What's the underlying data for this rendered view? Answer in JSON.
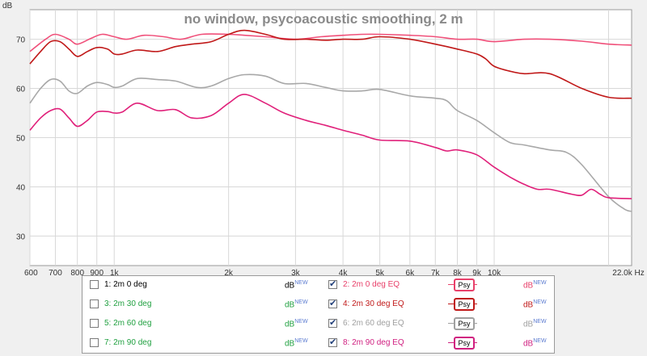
{
  "chart_data": {
    "type": "line",
    "title": "no window, psycoacoustic smoothing, 2 m",
    "ylabel": "dB",
    "xunit": "Hz",
    "xscale": "log",
    "xlim": [
      600,
      23000
    ],
    "ylim": [
      24,
      76
    ],
    "grid": true,
    "legend": "below",
    "xticks": [
      {
        "v": 600,
        "label": "600"
      },
      {
        "v": 700,
        "label": "700"
      },
      {
        "v": 800,
        "label": "800"
      },
      {
        "v": 900,
        "label": "900"
      },
      {
        "v": 1000,
        "label": "1k"
      },
      {
        "v": 2000,
        "label": "2k"
      },
      {
        "v": 3000,
        "label": "3k"
      },
      {
        "v": 4000,
        "label": "4k"
      },
      {
        "v": 5000,
        "label": "5k"
      },
      {
        "v": 6000,
        "label": "6k"
      },
      {
        "v": 7000,
        "label": "7k"
      },
      {
        "v": 8000,
        "label": "8k"
      },
      {
        "v": 9000,
        "label": "9k"
      },
      {
        "v": 10000,
        "label": "10k"
      },
      {
        "v": 22000,
        "label": "22,0k Hz"
      }
    ],
    "xgrid": [
      600,
      700,
      800,
      900,
      1000,
      2000,
      3000,
      4000,
      5000,
      6000,
      7000,
      8000,
      9000,
      10000,
      20000
    ],
    "yticks": [
      {
        "v": 30,
        "label": "30"
      },
      {
        "v": 40,
        "label": "40"
      },
      {
        "v": 50,
        "label": "50"
      },
      {
        "v": 60,
        "label": "60"
      },
      {
        "v": 70,
        "label": "70"
      }
    ],
    "series": [
      {
        "name": "2: 2m 0 deg EQ",
        "color": "#f0507a",
        "points": [
          [
            600,
            67.5
          ],
          [
            660,
            70
          ],
          [
            700,
            71
          ],
          [
            760,
            70
          ],
          [
            800,
            69
          ],
          [
            870,
            70.2
          ],
          [
            930,
            71
          ],
          [
            1000,
            70.5
          ],
          [
            1080,
            70
          ],
          [
            1200,
            70.8
          ],
          [
            1350,
            70.5
          ],
          [
            1500,
            70
          ],
          [
            1700,
            71
          ],
          [
            2000,
            71
          ],
          [
            2200,
            70.8
          ],
          [
            2500,
            70.5
          ],
          [
            3000,
            70
          ],
          [
            3500,
            70.5
          ],
          [
            4000,
            70.8
          ],
          [
            4500,
            71
          ],
          [
            5000,
            71
          ],
          [
            6000,
            70.8
          ],
          [
            7000,
            70.5
          ],
          [
            8000,
            70
          ],
          [
            9000,
            70
          ],
          [
            10000,
            69.5
          ],
          [
            12000,
            70
          ],
          [
            14000,
            70
          ],
          [
            17000,
            69.6
          ],
          [
            20000,
            69
          ],
          [
            23000,
            68.8
          ]
        ]
      },
      {
        "name": "4: 2m 30 deg EQ",
        "color": "#c01818",
        "points": [
          [
            600,
            65
          ],
          [
            640,
            67.5
          ],
          [
            680,
            69.5
          ],
          [
            720,
            69.5
          ],
          [
            760,
            68
          ],
          [
            800,
            66.5
          ],
          [
            850,
            67.5
          ],
          [
            900,
            68.3
          ],
          [
            960,
            68
          ],
          [
            1000,
            67
          ],
          [
            1050,
            67
          ],
          [
            1150,
            67.8
          ],
          [
            1300,
            67.5
          ],
          [
            1450,
            68.5
          ],
          [
            1600,
            69
          ],
          [
            1800,
            69.5
          ],
          [
            2000,
            71
          ],
          [
            2200,
            71.8
          ],
          [
            2500,
            71
          ],
          [
            2800,
            70
          ],
          [
            3200,
            70
          ],
          [
            3600,
            69.8
          ],
          [
            4000,
            70
          ],
          [
            4500,
            70
          ],
          [
            5000,
            70.5
          ],
          [
            6000,
            70
          ],
          [
            7000,
            69
          ],
          [
            8000,
            68
          ],
          [
            9000,
            67
          ],
          [
            9500,
            66
          ],
          [
            10000,
            64.5
          ],
          [
            11000,
            63.5
          ],
          [
            12000,
            63
          ],
          [
            14000,
            63
          ],
          [
            17000,
            60
          ],
          [
            20000,
            58.2
          ],
          [
            23000,
            58
          ]
        ]
      },
      {
        "name": "6: 2m 60 deg EQ",
        "color": "#a8a8a8",
        "points": [
          [
            600,
            57
          ],
          [
            640,
            60
          ],
          [
            680,
            61.8
          ],
          [
            720,
            61.5
          ],
          [
            760,
            59.5
          ],
          [
            800,
            59
          ],
          [
            850,
            60.5
          ],
          [
            900,
            61.2
          ],
          [
            960,
            60.8
          ],
          [
            1000,
            60.2
          ],
          [
            1050,
            60.5
          ],
          [
            1150,
            62
          ],
          [
            1300,
            61.8
          ],
          [
            1450,
            61.5
          ],
          [
            1650,
            60.2
          ],
          [
            1800,
            60.5
          ],
          [
            2000,
            62
          ],
          [
            2200,
            62.8
          ],
          [
            2500,
            62.5
          ],
          [
            2800,
            61
          ],
          [
            3200,
            61
          ],
          [
            3600,
            60.2
          ],
          [
            4000,
            59.5
          ],
          [
            4500,
            59.5
          ],
          [
            5000,
            59.8
          ],
          [
            6000,
            58.5
          ],
          [
            7000,
            58
          ],
          [
            7500,
            57.5
          ],
          [
            8000,
            55.5
          ],
          [
            9000,
            53.5
          ],
          [
            10000,
            51
          ],
          [
            11000,
            49
          ],
          [
            12000,
            48.5
          ],
          [
            14000,
            47.5
          ],
          [
            15500,
            47
          ],
          [
            17000,
            44.5
          ],
          [
            20000,
            38
          ],
          [
            22000,
            35.5
          ],
          [
            23000,
            35
          ]
        ]
      },
      {
        "name": "8: 2m 90 deg EQ",
        "color": "#e0207a",
        "points": [
          [
            600,
            51.5
          ],
          [
            640,
            54
          ],
          [
            680,
            55.5
          ],
          [
            720,
            55.8
          ],
          [
            760,
            54
          ],
          [
            800,
            52.3
          ],
          [
            850,
            53.5
          ],
          [
            900,
            55.2
          ],
          [
            960,
            55.3
          ],
          [
            1000,
            55
          ],
          [
            1050,
            55.2
          ],
          [
            1150,
            57
          ],
          [
            1300,
            55.5
          ],
          [
            1450,
            55.7
          ],
          [
            1600,
            54
          ],
          [
            1800,
            54.5
          ],
          [
            2000,
            57
          ],
          [
            2200,
            58.8
          ],
          [
            2500,
            57
          ],
          [
            2800,
            55
          ],
          [
            3200,
            53.5
          ],
          [
            3600,
            52.5
          ],
          [
            4000,
            51.5
          ],
          [
            4500,
            50.5
          ],
          [
            5000,
            49.5
          ],
          [
            6000,
            49.3
          ],
          [
            7000,
            48
          ],
          [
            7500,
            47.3
          ],
          [
            8000,
            47.5
          ],
          [
            9000,
            46.5
          ],
          [
            10000,
            44
          ],
          [
            11000,
            42
          ],
          [
            12000,
            40.5
          ],
          [
            13000,
            39.5
          ],
          [
            14000,
            39.5
          ],
          [
            16000,
            38.5
          ],
          [
            17000,
            38.3
          ],
          [
            18000,
            39.5
          ],
          [
            19000,
            38.5
          ],
          [
            20000,
            37.8
          ],
          [
            23000,
            37.6
          ]
        ]
      }
    ]
  },
  "legend": {
    "rows": [
      {
        "left": {
          "label": "1: 2m 0 deg",
          "checked": false,
          "color": "#000000",
          "db": "dB",
          "new": "NEW",
          "dbcolor": "#000000"
        },
        "right": {
          "label": "2: 2m 0 deg EQ",
          "checked": true,
          "color": "#e8406a",
          "db": "dB",
          "new": "NEW",
          "dbcolor": "#e8406a",
          "psy": "Psy"
        }
      },
      {
        "left": {
          "label": "3: 2m 30 deg",
          "checked": false,
          "color": "#20a040",
          "db": "dB",
          "new": "NEW",
          "dbcolor": "#20a040"
        },
        "right": {
          "label": "4: 2m 30 deg EQ",
          "checked": true,
          "color": "#c01818",
          "db": "dB",
          "new": "NEW",
          "dbcolor": "#c01818",
          "psy": "Psy"
        }
      },
      {
        "left": {
          "label": "5: 2m 60 deg",
          "checked": false,
          "color": "#20a040",
          "db": "dB",
          "new": "NEW",
          "dbcolor": "#20a040"
        },
        "right": {
          "label": "6: 2m 60 deg EQ",
          "checked": true,
          "color": "#a0a0a0",
          "db": "dB",
          "new": "NEW",
          "dbcolor": "#a0a0a0",
          "psy": "Psy"
        }
      },
      {
        "left": {
          "label": "7: 2m 90 deg",
          "checked": false,
          "color": "#20a040",
          "db": "dB",
          "new": "NEW",
          "dbcolor": "#20a040"
        },
        "right": {
          "label": "8: 2m 90 deg EQ",
          "checked": true,
          "color": "#d02080",
          "db": "dB",
          "new": "NEW",
          "dbcolor": "#d02080",
          "psy": "Psy"
        }
      }
    ]
  }
}
